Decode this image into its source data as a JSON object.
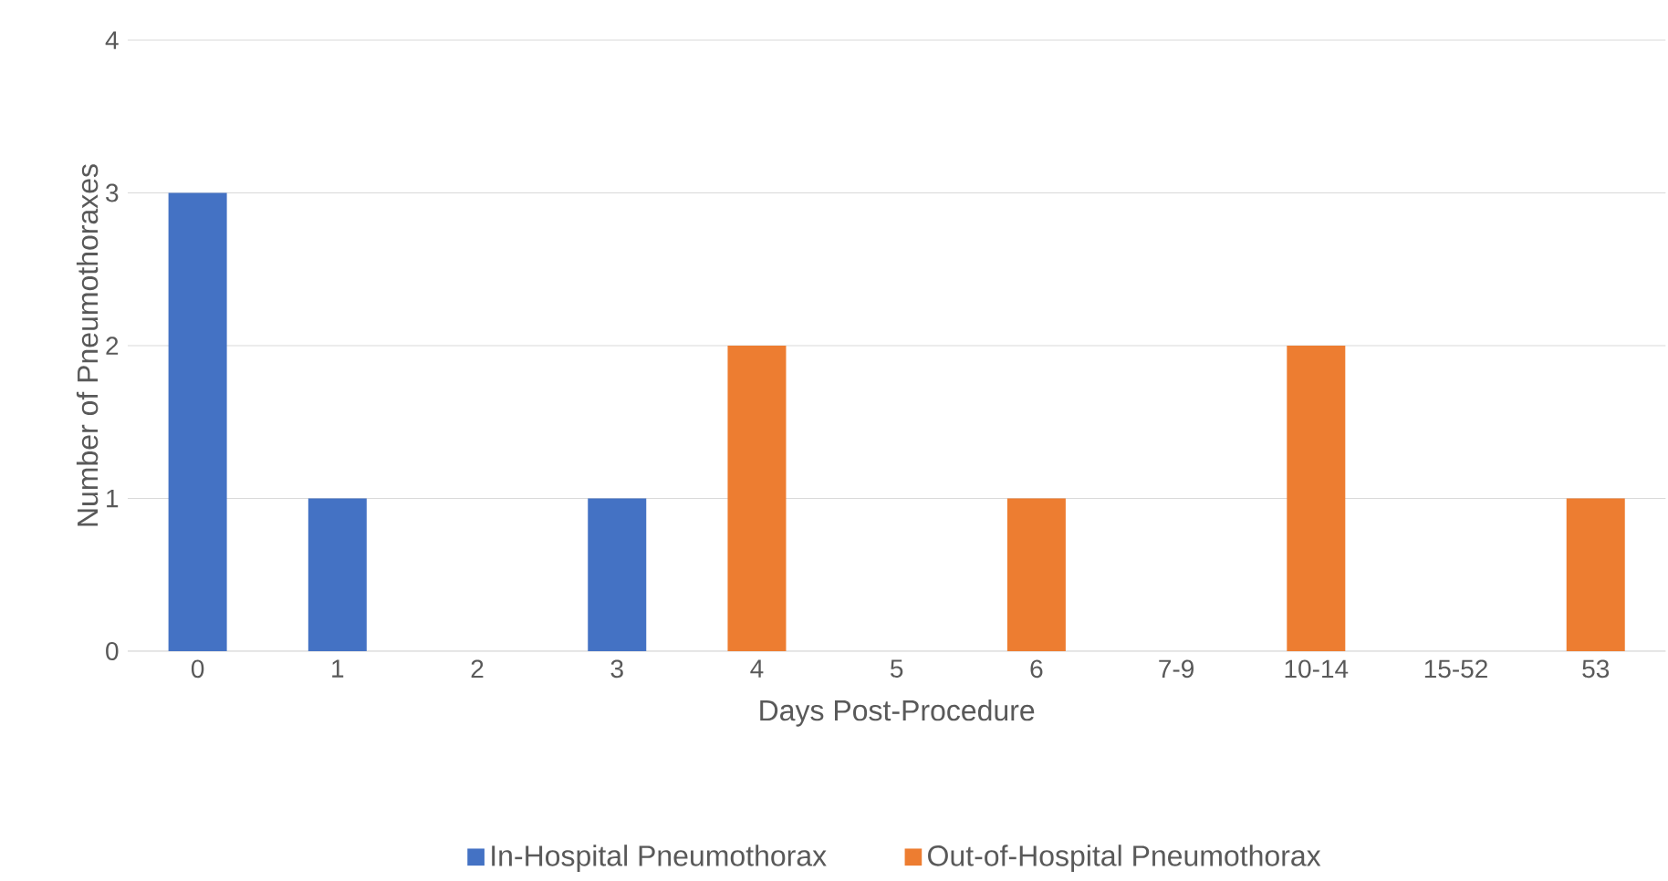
{
  "chart_data": {
    "type": "bar",
    "xlabel": "Days Post-Procedure",
    "ylabel": "Number of Pneumothoraxes",
    "categories": [
      "0",
      "1",
      "2",
      "3",
      "4",
      "5",
      "6",
      "7-9",
      "10-14",
      "15-52",
      "53"
    ],
    "series": [
      {
        "name": "In-Hospital Pneumothorax",
        "color": "#4472c4",
        "values": [
          3,
          1,
          0,
          1,
          null,
          null,
          null,
          null,
          null,
          null,
          null
        ]
      },
      {
        "name": "Out-of-Hospital Pneumothorax",
        "color": "#ed7d31",
        "values": [
          null,
          null,
          null,
          null,
          2,
          0,
          1,
          0,
          2,
          0,
          1
        ]
      }
    ],
    "ylim": [
      0,
      4
    ],
    "yticks": [
      0,
      1,
      2,
      3,
      4
    ],
    "grid": "y",
    "legend": "bottom"
  }
}
